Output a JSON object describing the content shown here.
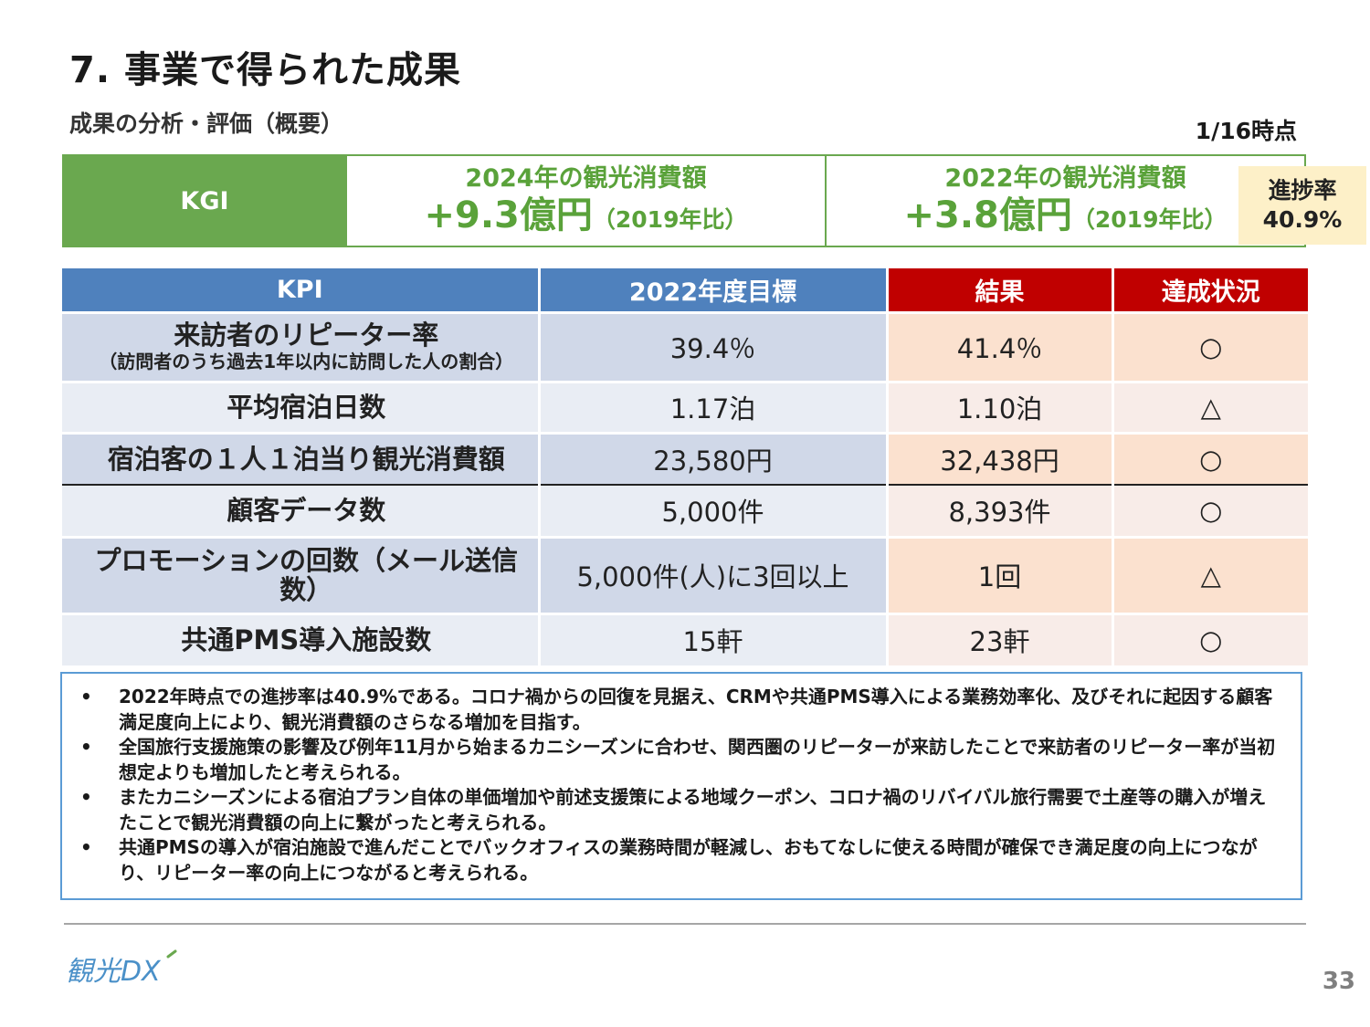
{
  "header": {
    "title": "7. 事業で得られた成果",
    "subtitle": "成果の分析・評価（概要）",
    "as_of": "1/16時点"
  },
  "kgi": {
    "label": "KGI",
    "target": {
      "heading": "2024年の観光消費額",
      "value": "+9.3億円",
      "note": "（2019年比）"
    },
    "actual": {
      "heading": "2022年の観光消費額",
      "value": "+3.8億円",
      "note": "（2019年比）"
    },
    "progress_label": "進捗率",
    "progress_value": "40.9%"
  },
  "kpi_table": {
    "headers": {
      "kpi": "KPI",
      "target": "2022年度目標",
      "result": "結果",
      "status": "達成状況"
    },
    "rows": [
      {
        "name": "来訪者のリピーター率",
        "sub": "（訪問者のうち過去1年以内に訪問した人の割合）",
        "target": "39.4％",
        "result": "41.4％",
        "status": "○"
      },
      {
        "name": "平均宿泊日数",
        "target": "1.17泊",
        "result": "1.10泊",
        "status": "△"
      },
      {
        "name": "宿泊客の１人１泊当り観光消費額",
        "target": "23,580円",
        "result": "32,438円",
        "status": "○"
      },
      {
        "name": "顧客データ数",
        "target": "5,000件",
        "result": "8,393件",
        "status": "○"
      },
      {
        "name": "プロモーションの回数（メール送信数）",
        "target": "5,000件(人)に3回以上",
        "result": "1回",
        "status": "△"
      },
      {
        "name": "共通PMS導入施設数",
        "target": "15軒",
        "result": "23軒",
        "status": "○"
      }
    ]
  },
  "notes": [
    "2022年時点での進捗率は40.9%である。コロナ禍からの回復を見据え、CRMや共通PMS導入による業務効率化、及びそれに起因する顧客満足度向上により、観光消費額のさらなる増加を目指す。",
    "全国旅行支援施策の影響及び例年11月から始まるカニシーズンに合わせ、関西圏のリピーターが来訪したことで来訪者のリピーター率が当初想定よりも増加したと考えられる。",
    "またカニシーズンによる宿泊プラン自体の単価増加や前述支援策による地域クーポン、コロナ禍のリバイバル旅行需要で土産等の購入が増えたことで観光消費額の向上に繋がったと考えられる。",
    "共通PMSの導入が宿泊施設で進んだことでバックオフィスの業務時間が軽減し、おもてなしに使える時間が確保でき満足度の向上につながり、リピーター率の向上につながると考えられる。"
  ],
  "note_bullet": "•",
  "footer": {
    "logo_text": "観光DX",
    "page_number": "33"
  },
  "colors": {
    "kgi_green": "#6aa84f",
    "kpi_blue": "#4f81bd",
    "result_red": "#c00000",
    "progress_bg": "#fdf0c8"
  }
}
